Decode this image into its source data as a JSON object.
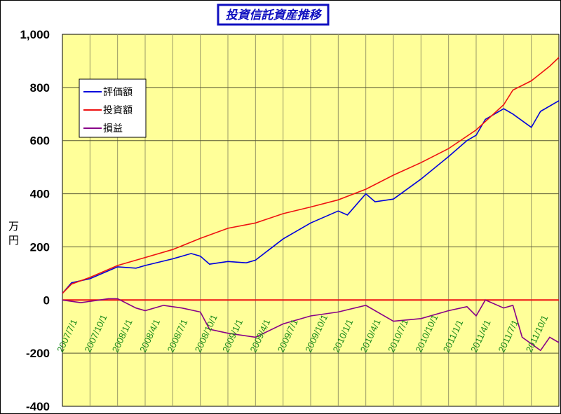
{
  "chart_data": {
    "type": "line",
    "title": "投資信託資産推移",
    "ylabel": "万円",
    "ylim": [
      -400,
      1000
    ],
    "yticks": [
      -400,
      -200,
      0,
      200,
      400,
      600,
      800,
      1000
    ],
    "ytick_labels": [
      "-400",
      "-200",
      "0",
      "200",
      "400",
      "600",
      "800",
      "1,000"
    ],
    "xlim": [
      "2007/7/1",
      "2012/1/1"
    ],
    "xtick_labels": [
      "2007/7/1",
      "2007/10/1",
      "2008/1/1",
      "2008/4/1",
      "2008/7/1",
      "2008/10/1",
      "2009/1/1",
      "2009/4/1",
      "2009/7/1",
      "2009/10/1",
      "2010/1/1",
      "2010/4/1",
      "2010/7/1",
      "2010/10/1",
      "2011/1/1",
      "2011/4/1",
      "2011/7/1",
      "2011/10/1"
    ],
    "grid": true,
    "legend_position": "top-left",
    "background_color": "#ffff99",
    "series": [
      {
        "name": "評価額",
        "color": "#0000dd",
        "points": [
          [
            "2007/7/1",
            25
          ],
          [
            "2007/8/1",
            65
          ],
          [
            "2007/10/1",
            80
          ],
          [
            "2008/1/1",
            125
          ],
          [
            "2008/3/1",
            120
          ],
          [
            "2008/4/1",
            130
          ],
          [
            "2008/7/1",
            155
          ],
          [
            "2008/9/1",
            175
          ],
          [
            "2008/10/1",
            165
          ],
          [
            "2008/11/1",
            135
          ],
          [
            "2009/1/1",
            145
          ],
          [
            "2009/3/1",
            140
          ],
          [
            "2009/4/1",
            150
          ],
          [
            "2009/7/1",
            230
          ],
          [
            "2009/10/1",
            290
          ],
          [
            "2010/1/1",
            335
          ],
          [
            "2010/2/1",
            320
          ],
          [
            "2010/4/1",
            400
          ],
          [
            "2010/5/1",
            370
          ],
          [
            "2010/7/1",
            380
          ],
          [
            "2010/10/1",
            455
          ],
          [
            "2011/1/1",
            540
          ],
          [
            "2011/3/1",
            600
          ],
          [
            "2011/4/1",
            620
          ],
          [
            "2011/5/1",
            680
          ],
          [
            "2011/7/1",
            720
          ],
          [
            "2011/8/1",
            700
          ],
          [
            "2011/10/1",
            650
          ],
          [
            "2011/11/1",
            710
          ],
          [
            "2012/1/1",
            750
          ]
        ]
      },
      {
        "name": "投資額",
        "color": "#ee1111",
        "points": [
          [
            "2007/7/1",
            25
          ],
          [
            "2007/8/1",
            60
          ],
          [
            "2007/10/1",
            85
          ],
          [
            "2008/1/1",
            130
          ],
          [
            "2008/4/1",
            160
          ],
          [
            "2008/7/1",
            190
          ],
          [
            "2008/10/1",
            232
          ],
          [
            "2009/1/1",
            270
          ],
          [
            "2009/4/1",
            290
          ],
          [
            "2009/7/1",
            325
          ],
          [
            "2009/10/1",
            350
          ],
          [
            "2010/1/1",
            377
          ],
          [
            "2010/4/1",
            417
          ],
          [
            "2010/7/1",
            470
          ],
          [
            "2010/10/1",
            517
          ],
          [
            "2011/1/1",
            570
          ],
          [
            "2011/4/1",
            640
          ],
          [
            "2011/7/1",
            735
          ],
          [
            "2011/8/1",
            790
          ],
          [
            "2011/10/1",
            825
          ],
          [
            "2011/12/1",
            880
          ],
          [
            "2012/1/1",
            913
          ]
        ]
      },
      {
        "name": "損益",
        "color": "#880088",
        "points": [
          [
            "2007/7/1",
            0
          ],
          [
            "2007/9/1",
            -10
          ],
          [
            "2007/12/1",
            5
          ],
          [
            "2008/1/1",
            5
          ],
          [
            "2008/3/1",
            -30
          ],
          [
            "2008/4/1",
            -40
          ],
          [
            "2008/6/1",
            -20
          ],
          [
            "2008/8/1",
            -30
          ],
          [
            "2008/10/1",
            -45
          ],
          [
            "2008/11/1",
            -110
          ],
          [
            "2009/1/1",
            -125
          ],
          [
            "2009/4/1",
            -140
          ],
          [
            "2009/7/1",
            -90
          ],
          [
            "2009/10/1",
            -60
          ],
          [
            "2010/1/1",
            -45
          ],
          [
            "2010/4/1",
            -20
          ],
          [
            "2010/7/1",
            -80
          ],
          [
            "2010/10/1",
            -70
          ],
          [
            "2011/1/1",
            -40
          ],
          [
            "2011/3/1",
            -25
          ],
          [
            "2011/4/1",
            -60
          ],
          [
            "2011/5/1",
            0
          ],
          [
            "2011/7/1",
            -30
          ],
          [
            "2011/8/1",
            -20
          ],
          [
            "2011/9/1",
            -140
          ],
          [
            "2011/11/1",
            -190
          ],
          [
            "2011/12/1",
            -140
          ],
          [
            "2012/1/1",
            -160
          ]
        ]
      }
    ]
  }
}
